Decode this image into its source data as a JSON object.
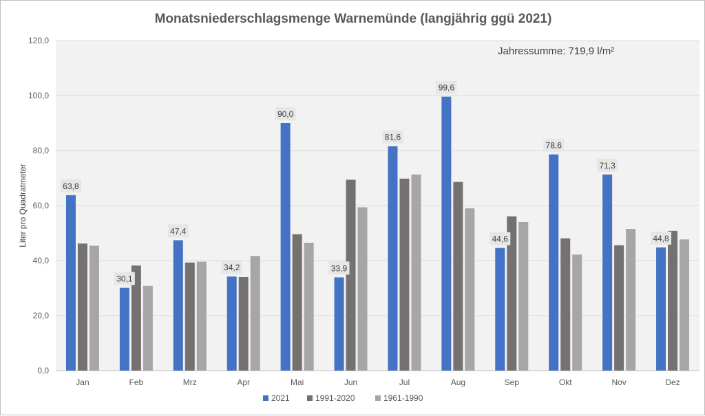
{
  "chart_data": {
    "type": "bar",
    "title": "Monatsniederschlagsmenge Warnemünde (langjährig ggü 2021)",
    "xlabel": "",
    "ylabel": "Liter pro Quadratmeter",
    "ylim": [
      0,
      120
    ],
    "yticks": [
      "0,0",
      "20,0",
      "40,0",
      "60,0",
      "80,0",
      "100,0",
      "120,0"
    ],
    "ytick_values": [
      0,
      20,
      40,
      60,
      80,
      100,
      120
    ],
    "grid": true,
    "legend_position": "bottom-center",
    "annotation": "Jahressumme: 719,9 l/m²",
    "categories": [
      "Jan",
      "Feb",
      "Mrz",
      "Apr",
      "Mai",
      "Jun",
      "Jul",
      "Aug",
      "Sep",
      "Okt",
      "Nov",
      "Dez"
    ],
    "series": [
      {
        "name": "2021",
        "color": "#4472c4",
        "values": [
          63.8,
          30.1,
          47.4,
          34.2,
          90.0,
          33.9,
          81.6,
          99.6,
          44.6,
          78.6,
          71.3,
          44.8
        ],
        "labels": [
          "63,8",
          "30,1",
          "47,4",
          "34,2",
          "90,0",
          "33,9",
          "81,6",
          "99,6",
          "44,6",
          "78,6",
          "71,3",
          "44,8"
        ]
      },
      {
        "name": "1991-2020",
        "color": "#767171",
        "values": [
          46.2,
          38.2,
          39.3,
          34.0,
          49.6,
          69.4,
          69.8,
          68.6,
          56.1,
          48.1,
          45.6,
          50.8
        ]
      },
      {
        "name": "1961-1990",
        "color": "#a6a6a6",
        "values": [
          45.4,
          30.8,
          39.6,
          41.7,
          46.5,
          59.4,
          71.3,
          59.0,
          54.0,
          42.2,
          51.5,
          47.7
        ]
      }
    ]
  }
}
